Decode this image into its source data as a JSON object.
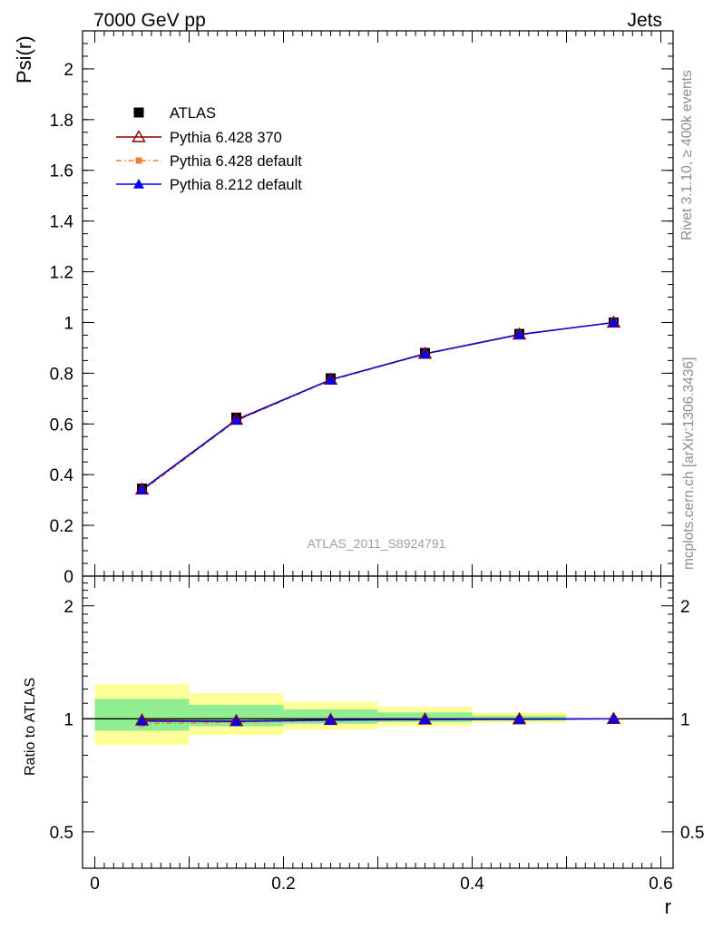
{
  "header": {
    "left_title": "7000 GeV pp",
    "right_title": "Jets"
  },
  "side_labels": {
    "rivet": "Rivet 3.1.10, ≥ 400k events",
    "mcplots": "mcplots.cern.ch [arXiv:1306.3436]"
  },
  "watermark": "ATLAS_2011_S8924791",
  "colors": {
    "atlas": "#000000",
    "p6_370": "#8b0000",
    "p6_default": "#f08030",
    "p8_default": "#0000ee",
    "band_inner": "#90ee90",
    "band_outer": "#ffff99"
  },
  "chart_data": [
    {
      "type": "line",
      "panel": "main",
      "ylabel": "Psi(r)",
      "xlabel": "r",
      "xlim": [
        -0.013,
        0.613
      ],
      "ylim": [
        0,
        2.15
      ],
      "yticks": [
        {
          "value": 0,
          "label": "0"
        },
        {
          "value": 0.2,
          "label": "0.2"
        },
        {
          "value": 0.4,
          "label": "0.4"
        },
        {
          "value": 0.6,
          "label": "0.6"
        },
        {
          "value": 0.8,
          "label": "0.8"
        },
        {
          "value": 1.0,
          "label": "1"
        },
        {
          "value": 1.2,
          "label": "1.2"
        },
        {
          "value": 1.4,
          "label": "1.4"
        },
        {
          "value": 1.6,
          "label": "1.6"
        },
        {
          "value": 1.8,
          "label": "1.8"
        },
        {
          "value": 2.0,
          "label": "2"
        }
      ],
      "x": [
        0.05,
        0.15,
        0.25,
        0.35,
        0.45,
        0.55
      ],
      "series": [
        {
          "name": "ATLAS",
          "key": "atlas",
          "marker": "square",
          "values": [
            0.345,
            0.625,
            0.78,
            0.88,
            0.955,
            1.0
          ]
        },
        {
          "name": "Pythia 6.428 370",
          "key": "p6_370",
          "marker": "open-triangle",
          "values": [
            0.342,
            0.617,
            0.775,
            0.877,
            0.953,
            1.0
          ]
        },
        {
          "name": "Pythia 6.428 default",
          "key": "p6_default",
          "marker": "small-square",
          "values": [
            0.335,
            0.612,
            0.772,
            0.875,
            0.952,
            1.0
          ]
        },
        {
          "name": "Pythia 8.212 default",
          "key": "p8_default",
          "marker": "triangle",
          "values": [
            0.34,
            0.615,
            0.774,
            0.876,
            0.952,
            1.0
          ]
        }
      ],
      "legend": "top-left"
    },
    {
      "type": "line",
      "panel": "ratio",
      "ylabel": "Ratio to ATLAS",
      "xlabel": "r",
      "scale": "log",
      "ylim": [
        0.4,
        2.4
      ],
      "xticks": [
        {
          "value": 0,
          "label": "0"
        },
        {
          "value": 0.2,
          "label": "0.2"
        },
        {
          "value": 0.4,
          "label": "0.4"
        },
        {
          "value": 0.6,
          "label": "0.6"
        }
      ],
      "yticks": [
        {
          "value": 0.5,
          "label": "0.5"
        },
        {
          "value": 1,
          "label": "1"
        },
        {
          "value": 2,
          "label": "2"
        }
      ],
      "bands": [
        {
          "x0": 0.0,
          "x1": 0.1,
          "outer": [
            0.85,
            1.24
          ],
          "inner": [
            0.93,
            1.13
          ]
        },
        {
          "x0": 0.1,
          "x1": 0.2,
          "outer": [
            0.905,
            1.17
          ],
          "inner": [
            0.955,
            1.09
          ]
        },
        {
          "x0": 0.2,
          "x1": 0.3,
          "outer": [
            0.935,
            1.11
          ],
          "inner": [
            0.97,
            1.06
          ]
        },
        {
          "x0": 0.3,
          "x1": 0.4,
          "outer": [
            0.955,
            1.075
          ],
          "inner": [
            0.98,
            1.04
          ]
        },
        {
          "x0": 0.4,
          "x1": 0.5,
          "outer": [
            0.975,
            1.04
          ],
          "inner": [
            0.99,
            1.02
          ]
        }
      ],
      "x": [
        0.05,
        0.15,
        0.25,
        0.35,
        0.45,
        0.55
      ],
      "series": [
        {
          "name": "Pythia 6.428 370",
          "key": "p6_370",
          "marker": "open-triangle",
          "values": [
            0.991,
            0.987,
            0.994,
            0.997,
            0.998,
            1.0
          ]
        },
        {
          "name": "Pythia 6.428 default",
          "key": "p6_default",
          "marker": "small-square",
          "values": [
            0.971,
            0.979,
            0.99,
            0.994,
            0.997,
            1.0
          ]
        },
        {
          "name": "Pythia 8.212 default",
          "key": "p8_default",
          "marker": "triangle",
          "values": [
            0.986,
            0.984,
            0.992,
            0.995,
            0.997,
            1.0
          ]
        }
      ]
    }
  ]
}
